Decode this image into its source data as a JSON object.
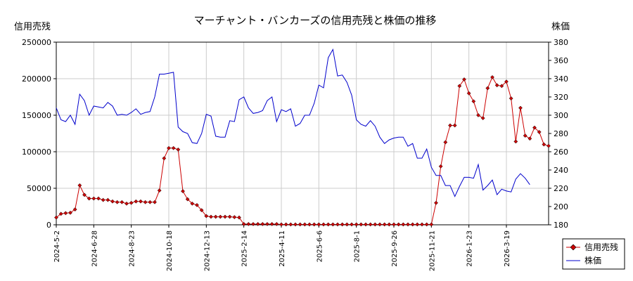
{
  "chart_data": {
    "type": "line",
    "title": "マーチャント・バンカーズの信用売残と株価の推移",
    "ylabel_left": "信用売残",
    "ylabel_right": "株価",
    "x_tick_labels": [
      "2024-5-2",
      "2024-6-28",
      "2024-8-23",
      "2024-10-18",
      "2024-12-13",
      "2025-2-14",
      "2025-4-11",
      "2025-6-6",
      "2025-8-1",
      "2025-9-26",
      "2025-11-21",
      "2026-1-23",
      "2026-3-19"
    ],
    "ylim_left": [
      0,
      250000
    ],
    "ylim_right": [
      180,
      380
    ],
    "y_ticks_left": [
      "0",
      "50000",
      "100000",
      "150000",
      "200000",
      "250000"
    ],
    "y_ticks_right": [
      "180",
      "200",
      "220",
      "240",
      "260",
      "280",
      "300",
      "320",
      "340",
      "360",
      "380"
    ],
    "grid": true,
    "legend_position": "bottom-right",
    "series": [
      {
        "name": "信用売残",
        "color": "#cc0000",
        "marker": "diamond",
        "axis": "left",
        "values": [
          10000,
          15000,
          16000,
          16500,
          21000,
          54000,
          41000,
          36000,
          36000,
          36000,
          34000,
          34000,
          32000,
          31000,
          31000,
          29000,
          30000,
          32000,
          32000,
          31000,
          31000,
          31000,
          47000,
          91000,
          105000,
          105000,
          103000,
          46000,
          35000,
          29000,
          27000,
          20000,
          12000,
          11000,
          11000,
          11000,
          11000,
          11000,
          10500,
          10000,
          1000,
          1000,
          1000,
          1000,
          1000,
          1000,
          1000,
          1000,
          500,
          500,
          500,
          500,
          500,
          500,
          500,
          500,
          500,
          500,
          500,
          500,
          500,
          500,
          500,
          500,
          500,
          500,
          500,
          500,
          500,
          500,
          500,
          500,
          500,
          500,
          500,
          500,
          500,
          500,
          500,
          500,
          500,
          30000,
          80000,
          113000,
          136000,
          136000,
          190000,
          199000,
          180000,
          169000,
          150000,
          146000,
          187000,
          202000,
          191000,
          190000,
          196000,
          173000,
          114000,
          160000,
          122000,
          118000,
          133000,
          127000,
          110000,
          108000
        ]
      },
      {
        "name": "株価",
        "color": "#0000cc",
        "marker": "none",
        "axis": "right",
        "values": [
          308,
          295,
          293,
          300,
          290,
          323,
          316,
          300,
          310,
          309,
          308,
          314,
          310,
          300,
          301,
          300,
          303,
          307,
          301,
          303,
          304,
          320,
          345,
          345,
          346,
          347,
          287,
          282,
          280,
          270,
          269,
          280,
          301,
          299,
          277,
          276,
          276,
          294,
          293,
          317,
          320,
          308,
          302,
          303,
          305,
          316,
          320,
          293,
          306,
          304,
          307,
          288,
          291,
          300,
          300,
          313,
          333,
          330,
          363,
          372,
          343,
          344,
          336,
          322,
          295,
          290,
          288,
          294,
          288,
          276,
          269,
          273,
          275,
          276,
          276,
          266,
          269,
          253,
          253,
          263,
          243,
          234,
          234,
          223,
          223,
          211,
          222,
          232,
          232,
          231,
          246,
          218,
          223,
          229,
          213,
          219,
          217,
          216,
          230,
          236,
          231,
          224
        ]
      }
    ]
  }
}
